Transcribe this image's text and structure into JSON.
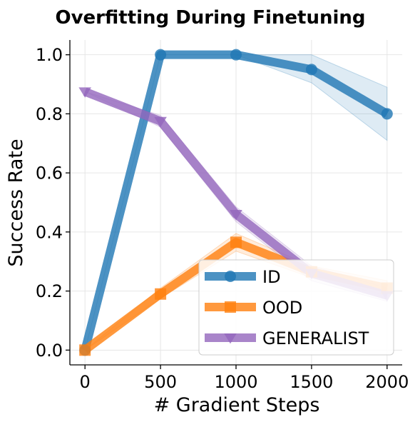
{
  "chart_data": {
    "type": "line",
    "title": "Overfitting During Finetuning",
    "xlabel": "# Gradient Steps",
    "ylabel": "Success Rate",
    "x": [
      0,
      500,
      1000,
      1500,
      2000
    ],
    "xticks": [
      0,
      500,
      1000,
      1500,
      2000
    ],
    "xtick_labels": [
      "0",
      "500",
      "1000",
      "1500",
      "2000"
    ],
    "yticks": [
      0.0,
      0.2,
      0.4,
      0.6,
      0.8,
      1.0
    ],
    "ytick_labels": [
      "0.0",
      "0.2",
      "0.4",
      "0.6",
      "0.8",
      "1.0"
    ],
    "xlim": [
      -100,
      2100
    ],
    "ylim": [
      -0.05,
      1.05
    ],
    "grid": true,
    "legend_position": "lower-right",
    "series": [
      {
        "name": "ID",
        "color": "#1f77b4",
        "marker": "circle",
        "values": [
          0.0,
          1.0,
          1.0,
          0.95,
          0.8
        ],
        "lower": [
          0.0,
          1.0,
          1.0,
          0.905,
          0.71
        ],
        "upper": [
          0.0,
          1.0,
          1.0,
          1.0,
          0.89
        ]
      },
      {
        "name": "OOD",
        "color": "#ff7f0e",
        "marker": "square",
        "values": [
          0.0,
          0.19,
          0.365,
          0.265,
          0.21
        ],
        "lower": [
          0.0,
          0.175,
          0.335,
          0.245,
          0.185
        ],
        "upper": [
          0.0,
          0.21,
          0.395,
          0.285,
          0.235
        ]
      },
      {
        "name": "GENERALIST",
        "color": "#9467bd",
        "marker": "triangle-down",
        "values": [
          0.875,
          0.775,
          0.46,
          0.26,
          0.185
        ],
        "lower": [
          0.875,
          0.755,
          0.435,
          0.235,
          0.165
        ],
        "upper": [
          0.875,
          0.795,
          0.485,
          0.285,
          0.21
        ]
      }
    ]
  }
}
